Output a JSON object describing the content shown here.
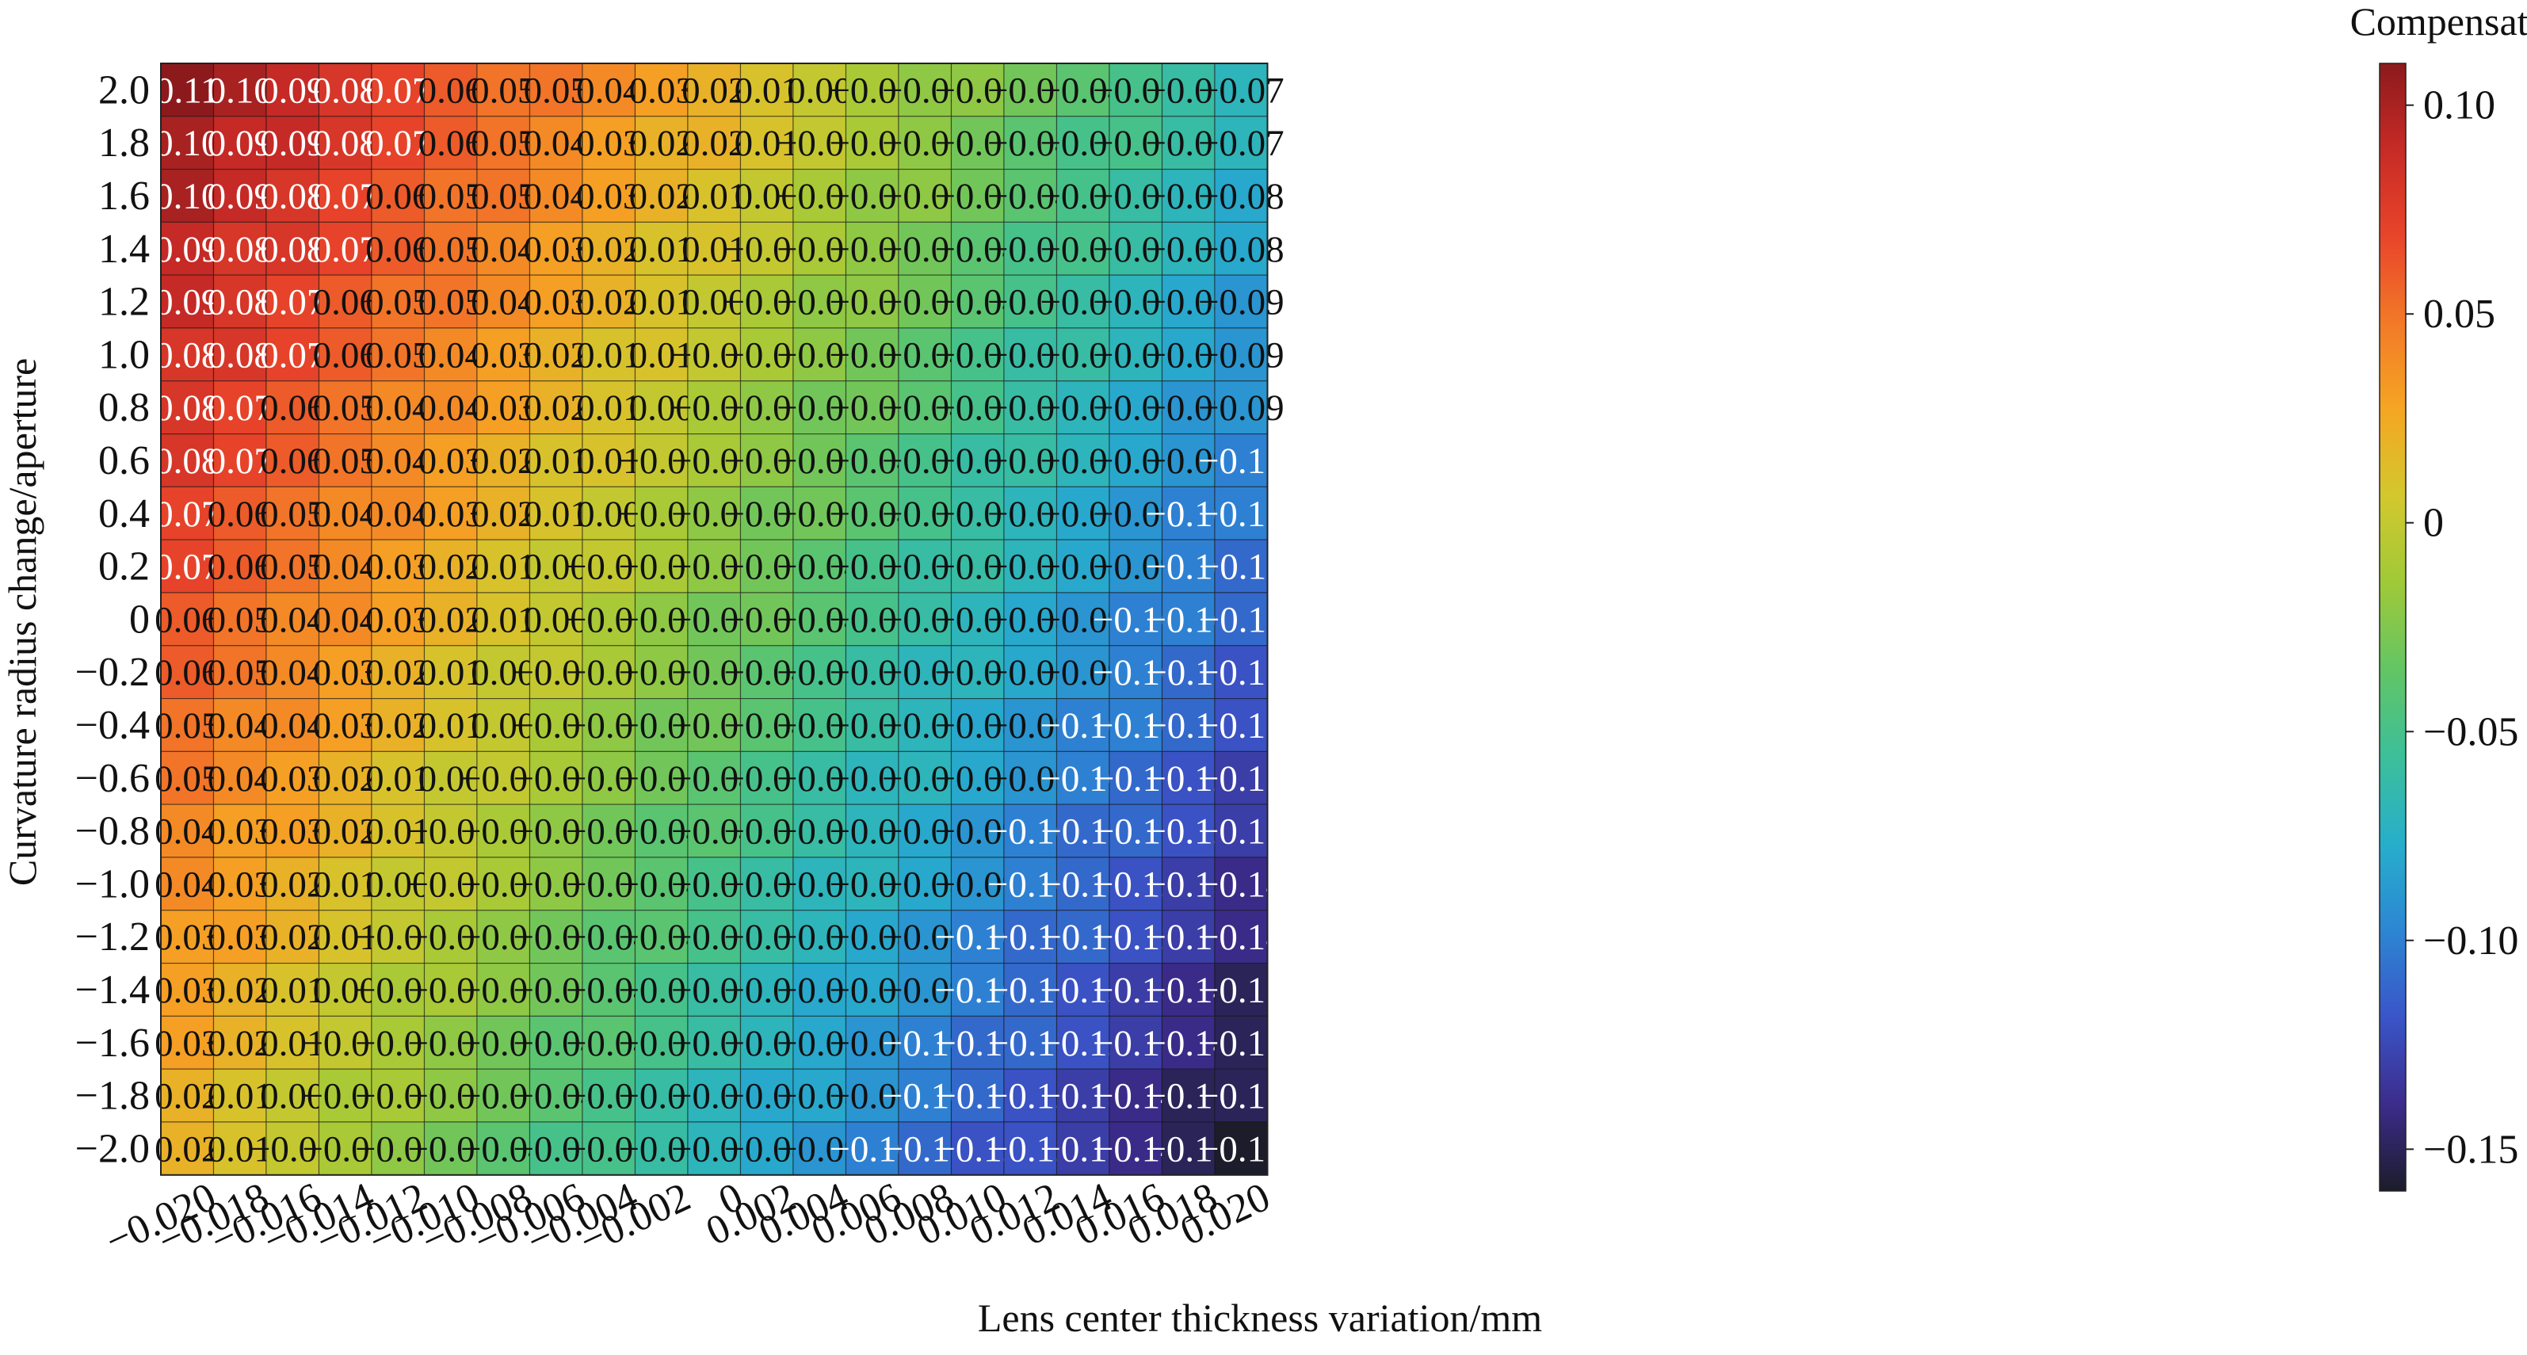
{
  "chart_data": {
    "type": "heatmap",
    "xlabel": "Lens center thickness variation/mm",
    "ylabel": "Curvature radius change/aperture",
    "colorbar_label": "Compensation",
    "colorbar_ticks": [
      "0.10",
      "0.05",
      "0",
      "−0.05",
      "−0.10",
      "−0.15"
    ],
    "colorbar_tick_values": [
      0.1,
      0.05,
      0,
      -0.05,
      -0.1,
      -0.15
    ],
    "value_range": [
      -0.16,
      0.11
    ],
    "colormap": [
      "#1c1c2a",
      "#3c2c8c",
      "#3a55c8",
      "#2c86d3",
      "#27aecb",
      "#3cbf9a",
      "#62c565",
      "#9fc938",
      "#d2c82e",
      "#f5a623",
      "#f27a28",
      "#e8452a",
      "#c72b26",
      "#8c1a1c"
    ],
    "x_tick_labels": [
      "−0.020",
      "−0.018",
      "−0.016",
      "−0.014",
      "−0.012",
      "−0.010",
      "−0.008",
      "−0.006",
      "−0.004",
      "−0.002",
      "0",
      "0.002",
      "0.004",
      "0.006",
      "0.008",
      "0.010",
      "0.012",
      "0.014",
      "0.016",
      "0.018",
      "0.020"
    ],
    "y_tick_labels": [
      "2.0",
      "1.8",
      "1.6",
      "1.4",
      "1.2",
      "1.0",
      "0.8",
      "0.6",
      "0.4",
      "0.2",
      "0",
      "−0.2",
      "−0.4",
      "−0.6",
      "−0.8",
      "−1.0",
      "−1.2",
      "−1.4",
      "−1.6",
      "−1.8",
      "−2.0"
    ],
    "rows": [
      [
        "0.11",
        "0.10",
        "0.09",
        "0.08",
        "0.07",
        "0.06",
        "0.05",
        "0.05",
        "0.04",
        "0.03",
        "0.02",
        "0.01",
        "0.00",
        "−0.01",
        "−0.02",
        "−0.02",
        "−0.03",
        "−0.04",
        "−0.05",
        "−0.06",
        "−0.07"
      ],
      [
        "0.10",
        "0.09",
        "0.09",
        "0.08",
        "0.07",
        "0.06",
        "0.05",
        "0.04",
        "0.03",
        "0.02",
        "0.02",
        "0.01",
        "−0.00",
        "−0.01",
        "−0.02",
        "−0.03",
        "−0.04",
        "−0.05",
        "−0.05",
        "−0.06",
        "−0.07"
      ],
      [
        "0.10",
        "0.09",
        "0.08",
        "0.07",
        "0.06",
        "0.05",
        "0.05",
        "0.04",
        "0.03",
        "0.02",
        "0.01",
        "0.00",
        "−0.01",
        "−0.02",
        "−0.02",
        "−0.03",
        "−0.04",
        "−0.05",
        "−0.06",
        "−0.07",
        "−0.08"
      ],
      [
        "0.09",
        "0.08",
        "0.08",
        "0.07",
        "0.06",
        "0.05",
        "0.04",
        "0.03",
        "0.02",
        "0.01",
        "0.01",
        "−0.00",
        "−0.01",
        "−0.02",
        "−0.03",
        "−0.04",
        "−0.05",
        "−0.05",
        "−0.06",
        "−0.07",
        "−0.08"
      ],
      [
        "0.09",
        "0.08",
        "0.07",
        "0.06",
        "0.05",
        "0.05",
        "0.04",
        "0.03",
        "0.02",
        "0.01",
        "0.00",
        "−0.01",
        "−0.02",
        "−0.02",
        "−0.03",
        "−0.04",
        "−0.05",
        "−0.06",
        "−0.07",
        "−0.08",
        "−0.09"
      ],
      [
        "0.08",
        "0.08",
        "0.07",
        "0.06",
        "0.05",
        "0.04",
        "0.03",
        "0.02",
        "0.01",
        "0.01",
        "−0.00",
        "−0.01",
        "−0.02",
        "−0.03",
        "−0.04",
        "−0.05",
        "−0.06",
        "−0.06",
        "−0.07",
        "−0.08",
        "−0.09"
      ],
      [
        "0.08",
        "0.07",
        "0.06",
        "0.05",
        "0.04",
        "0.04",
        "0.03",
        "0.02",
        "0.01",
        "0.00",
        "−0.01",
        "−0.02",
        "−0.03",
        "−0.03",
        "−0.04",
        "−0.05",
        "−0.06",
        "−0.07",
        "−0.08",
        "−0.09",
        "−0.09"
      ],
      [
        "0.08",
        "0.07",
        "0.06",
        "0.05",
        "0.04",
        "0.03",
        "0.02",
        "0.01",
        "0.01",
        "−0.00",
        "−0.01",
        "−0.02",
        "−0.03",
        "−0.04",
        "−0.05",
        "−0.06",
        "−0.06",
        "−0.07",
        "−0.08",
        "−0.09",
        "−0.10"
      ],
      [
        "0.07",
        "0.06",
        "0.05",
        "0.04",
        "0.04",
        "0.03",
        "0.02",
        "0.01",
        "0.00",
        "−0.01",
        "−0.02",
        "−0.03",
        "−0.03",
        "−0.04",
        "−0.05",
        "−0.06",
        "−0.07",
        "−0.08",
        "−0.09",
        "−0.10",
        "−0.10"
      ],
      [
        "0.07",
        "0.06",
        "0.05",
        "0.04",
        "0.03",
        "0.02",
        "0.01",
        "0.00",
        "−0.00",
        "−0.01",
        "−0.02",
        "−0.03",
        "−0.04",
        "−0.05",
        "−0.06",
        "−0.06",
        "−0.07",
        "−0.08",
        "−0.09",
        "−0.10",
        "−0.11"
      ],
      [
        "0.06",
        "0.05",
        "0.04",
        "0.04",
        "0.03",
        "0.02",
        "0.01",
        "0.00",
        "−0.01",
        "−0.02",
        "−0.03",
        "−0.03",
        "−0.04",
        "−0.05",
        "−0.06",
        "−0.07",
        "−0.08",
        "−0.09",
        "−0.10",
        "−0.10",
        "−0.11"
      ],
      [
        "0.06",
        "0.05",
        "0.04",
        "0.03",
        "0.02",
        "0.01",
        "0.00",
        "−0.00",
        "−0.01",
        "−0.02",
        "−0.03",
        "−0.04",
        "−0.05",
        "−0.06",
        "−0.07",
        "−0.07",
        "−0.08",
        "−0.09",
        "−0.10",
        "−0.11",
        "−0.12"
      ],
      [
        "0.05",
        "0.04",
        "0.04",
        "0.03",
        "0.02",
        "0.01",
        "0.00",
        "−0.01",
        "−0.02",
        "−0.03",
        "−0.03",
        "−0.04",
        "−0.05",
        "−0.06",
        "−0.07",
        "−0.08",
        "−0.09",
        "−0.10",
        "−0.10",
        "−0.11",
        "−0.12"
      ],
      [
        "0.05",
        "0.04",
        "0.03",
        "0.02",
        "0.01",
        "0.00",
        "−0.00",
        "−0.01",
        "−0.02",
        "−0.03",
        "−0.04",
        "−0.05",
        "−0.06",
        "−0.07",
        "−0.07",
        "−0.08",
        "−0.09",
        "−0.10",
        "−0.11",
        "−0.12",
        "−0.13"
      ],
      [
        "0.04",
        "0.03",
        "0.03",
        "0.02",
        "0.01",
        "−0.00",
        "−0.01",
        "−0.02",
        "−0.03",
        "−0.04",
        "−0.04",
        "−0.05",
        "−0.06",
        "−0.07",
        "−0.08",
        "−0.09",
        "−0.10",
        "−0.11",
        "−0.11",
        "−0.12",
        "−0.13"
      ],
      [
        "0.04",
        "0.03",
        "0.02",
        "0.01",
        "0.00",
        "−0.00",
        "−0.01",
        "−0.02",
        "−0.03",
        "−0.04",
        "−0.05",
        "−0.06",
        "−0.07",
        "−0.07",
        "−0.08",
        "−0.09",
        "−0.10",
        "−0.11",
        "−0.12",
        "−0.13",
        "−0.14"
      ],
      [
        "0.03",
        "0.03",
        "0.02",
        "0.01",
        "−0.00",
        "−0.01",
        "−0.02",
        "−0.03",
        "−0.04",
        "−0.04",
        "−0.05",
        "−0.06",
        "−0.07",
        "−0.08",
        "−0.09",
        "−0.10",
        "−0.11",
        "−0.11",
        "−0.12",
        "−0.13",
        "−0.14"
      ],
      [
        "0.03",
        "0.02",
        "0.01",
        "0.00",
        "−0.01",
        "−0.01",
        "−0.02",
        "−0.03",
        "−0.04",
        "−0.05",
        "−0.06",
        "−0.07",
        "−0.08",
        "−0.08",
        "−0.09",
        "−0.10",
        "−0.11",
        "−0.12",
        "−0.13",
        "−0.14",
        "−0.15"
      ],
      [
        "0.03",
        "0.02",
        "0.01",
        "−0.00",
        "−0.01",
        "−0.02",
        "−0.03",
        "−0.04",
        "−0.04",
        "−0.05",
        "−0.06",
        "−0.07",
        "−0.08",
        "−0.09",
        "−0.10",
        "−0.11",
        "−0.11",
        "−0.12",
        "−0.13",
        "−0.14",
        "−0.15"
      ],
      [
        "0.02",
        "0.01",
        "0.00",
        "−0.01",
        "−0.01",
        "−0.02",
        "−0.03",
        "−0.04",
        "−0.05",
        "−0.06",
        "−0.07",
        "−0.08",
        "−0.08",
        "−0.09",
        "−0.10",
        "−0.11",
        "−0.12",
        "−0.13",
        "−0.14",
        "−0.15",
        "−0.15"
      ],
      [
        "0.02",
        "0.01",
        "−0.00",
        "−0.01",
        "−0.02",
        "−0.03",
        "−0.04",
        "−0.05",
        "−0.05",
        "−0.06",
        "−0.07",
        "−0.08",
        "−0.09",
        "−0.10",
        "−0.11",
        "−0.12",
        "−0.12",
        "−0.13",
        "−0.14",
        "−0.15",
        "−0.16"
      ]
    ]
  }
}
